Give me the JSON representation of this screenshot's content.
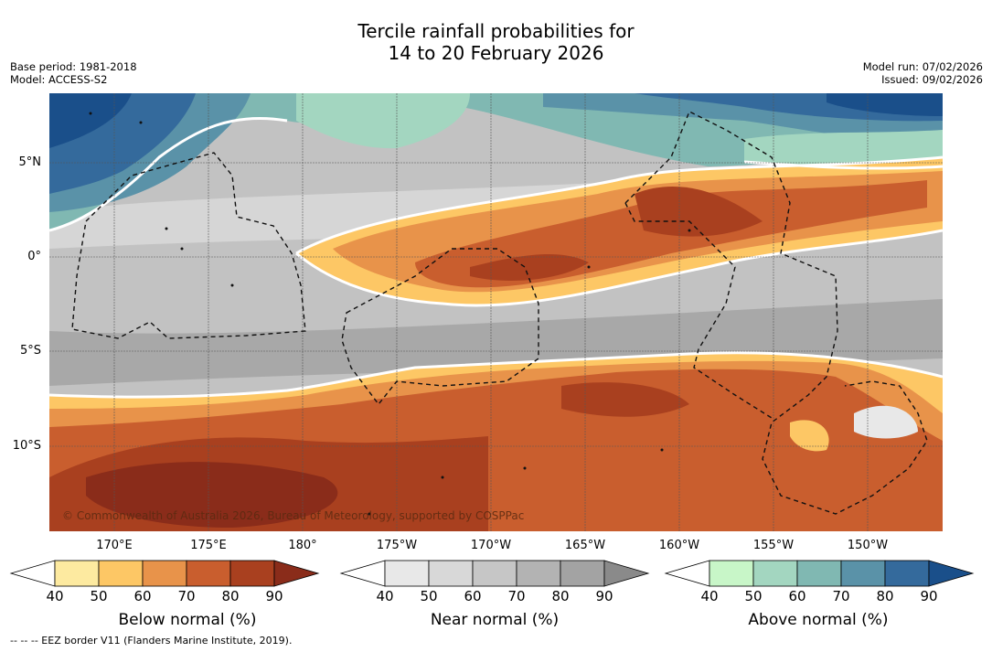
{
  "title": {
    "line1": "Tercile rainfall probabilities for",
    "line2": "14 to 20 February 2026"
  },
  "meta_left": {
    "base_period": "Base period: 1981-2018",
    "model": "Model: ACCESS-S2"
  },
  "meta_right": {
    "model_run": "Model run: 07/02/2026",
    "issued": "Issued: 09/02/2026"
  },
  "lat_labels": [
    "5°N",
    "0°",
    "5°S",
    "10°S"
  ],
  "lon_labels": [
    "170°E",
    "175°E",
    "180°",
    "175°W",
    "170°W",
    "165°W",
    "160°W",
    "155°W",
    "150°W"
  ],
  "copyright": "© Commonwealth of Australia 2026, Bureau of Meteorology, supported by COSPPac",
  "colorbars": [
    {
      "label": "Below normal (%)",
      "ticks": [
        "40",
        "50",
        "60",
        "70",
        "80",
        "90"
      ],
      "colors": [
        "#fdeaa0",
        "#fdc765",
        "#e8934a",
        "#c95e2e",
        "#a9401f",
        "#8a2c1a"
      ]
    },
    {
      "label": "Near normal (%)",
      "ticks": [
        "40",
        "50",
        "60",
        "70",
        "80",
        "90"
      ],
      "colors": [
        "#e8e8e8",
        "#d8d8d8",
        "#c6c6c6",
        "#b3b3b3",
        "#a3a3a3",
        "#8a8a8a"
      ]
    },
    {
      "label": "Above normal (%)",
      "ticks": [
        "40",
        "50",
        "60",
        "70",
        "80",
        "90"
      ],
      "colors": [
        "#c8f6c8",
        "#a3d6c0",
        "#80b8b2",
        "#5a92a8",
        "#346a9c",
        "#1a4f8a"
      ]
    }
  ],
  "footer": "--  --  -- EEZ border V11 (Flanders Marine Institute, 2019)."
}
